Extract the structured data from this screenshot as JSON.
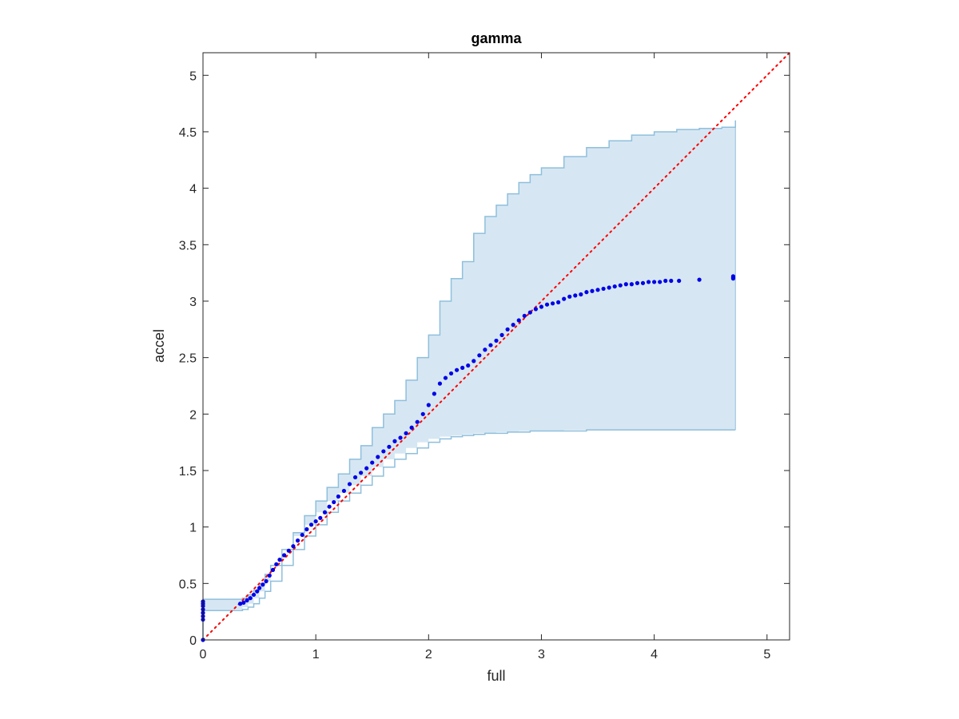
{
  "chart_data": {
    "type": "scatter",
    "title": "gamma",
    "xlabel": "full",
    "ylabel": "accel",
    "xlim": [
      0,
      5.2
    ],
    "ylim": [
      0,
      5.2
    ],
    "xticks": [
      "0",
      "1",
      "2",
      "3",
      "4",
      "5"
    ],
    "yticks": [
      "0",
      "0.5",
      "1",
      "1.5",
      "2",
      "2.5",
      "3",
      "3.5",
      "4",
      "4.5",
      "5"
    ],
    "grid": false,
    "legend": "none",
    "colors": {
      "points": "#0000e6",
      "reference_line": "#ff0000",
      "band_fill": "#d6e7f3",
      "band_edge": "#8fbfdc",
      "axes": "#262626"
    },
    "reference_line": {
      "x": [
        0,
        5.2
      ],
      "y": [
        0,
        5.2
      ]
    },
    "band": {
      "x": [
        0,
        0.28,
        0.35,
        0.4,
        0.45,
        0.5,
        0.55,
        0.6,
        0.7,
        0.8,
        0.9,
        1.0,
        1.1,
        1.2,
        1.3,
        1.4,
        1.5,
        1.6,
        1.7,
        1.8,
        1.9,
        2.0,
        2.1,
        2.2,
        2.3,
        2.4,
        2.5,
        2.6,
        2.7,
        2.8,
        2.9,
        3.0,
        3.2,
        3.4,
        3.6,
        3.8,
        4.0,
        4.2,
        4.4,
        4.6,
        4.72
      ],
      "upper": [
        0.36,
        0.36,
        0.37,
        0.4,
        0.44,
        0.5,
        0.58,
        0.66,
        0.8,
        0.95,
        1.1,
        1.23,
        1.35,
        1.47,
        1.6,
        1.72,
        1.88,
        2.0,
        2.12,
        2.3,
        2.5,
        2.7,
        3.0,
        3.2,
        3.35,
        3.6,
        3.75,
        3.85,
        3.95,
        4.05,
        4.12,
        4.18,
        4.28,
        4.36,
        4.42,
        4.47,
        4.5,
        4.52,
        4.53,
        4.54,
        4.6
      ],
      "lower": [
        0.26,
        0.26,
        0.27,
        0.29,
        0.32,
        0.37,
        0.43,
        0.52,
        0.66,
        0.8,
        0.92,
        1.02,
        1.13,
        1.23,
        1.3,
        1.37,
        1.45,
        1.53,
        1.6,
        1.65,
        1.7,
        1.75,
        1.78,
        1.8,
        1.81,
        1.82,
        1.83,
        1.83,
        1.84,
        1.84,
        1.85,
        1.85,
        1.85,
        1.86,
        1.86,
        1.86,
        1.86,
        1.86,
        1.86,
        1.86,
        1.86
      ]
    },
    "series": [
      {
        "x": [
          0.0,
          0.0,
          0.0,
          0.0,
          0.0,
          0.0,
          0.0,
          0.0,
          0.33,
          0.36,
          0.39,
          0.42,
          0.45,
          0.48,
          0.5,
          0.53,
          0.56,
          0.59,
          0.62,
          0.65,
          0.68,
          0.72,
          0.76,
          0.8,
          0.84,
          0.88,
          0.92,
          0.96,
          1.0,
          1.04,
          1.08,
          1.12,
          1.16,
          1.2,
          1.25,
          1.3,
          1.35,
          1.4,
          1.45,
          1.5,
          1.55,
          1.6,
          1.65,
          1.7,
          1.75,
          1.8,
          1.85,
          1.9,
          1.95,
          2.0,
          2.05,
          2.1,
          2.15,
          2.2,
          2.25,
          2.3,
          2.35,
          2.4,
          2.45,
          2.5,
          2.55,
          2.6,
          2.65,
          2.7,
          2.75,
          2.8,
          2.85,
          2.9,
          2.95,
          3.0,
          3.05,
          3.1,
          3.15,
          3.2,
          3.25,
          3.3,
          3.35,
          3.4,
          3.45,
          3.5,
          3.55,
          3.6,
          3.65,
          3.7,
          3.75,
          3.8,
          3.85,
          3.9,
          3.95,
          4.0,
          4.05,
          4.1,
          4.15,
          4.22,
          4.4,
          4.7,
          4.7,
          4.7
        ],
        "y": [
          0.0,
          0.18,
          0.21,
          0.24,
          0.27,
          0.3,
          0.32,
          0.34,
          0.32,
          0.33,
          0.35,
          0.37,
          0.4,
          0.43,
          0.46,
          0.49,
          0.52,
          0.57,
          0.62,
          0.67,
          0.71,
          0.75,
          0.79,
          0.83,
          0.88,
          0.93,
          0.98,
          1.02,
          1.05,
          1.08,
          1.13,
          1.18,
          1.22,
          1.27,
          1.32,
          1.38,
          1.44,
          1.48,
          1.52,
          1.57,
          1.62,
          1.67,
          1.71,
          1.76,
          1.79,
          1.83,
          1.88,
          1.93,
          2.0,
          2.08,
          2.18,
          2.27,
          2.32,
          2.36,
          2.39,
          2.41,
          2.43,
          2.47,
          2.52,
          2.57,
          2.61,
          2.65,
          2.7,
          2.75,
          2.79,
          2.83,
          2.87,
          2.9,
          2.93,
          2.95,
          2.97,
          2.98,
          2.99,
          3.02,
          3.04,
          3.05,
          3.06,
          3.08,
          3.09,
          3.1,
          3.11,
          3.12,
          3.13,
          3.14,
          3.15,
          3.15,
          3.16,
          3.16,
          3.17,
          3.17,
          3.17,
          3.18,
          3.18,
          3.18,
          3.19,
          3.2,
          3.21,
          3.22
        ]
      }
    ]
  }
}
